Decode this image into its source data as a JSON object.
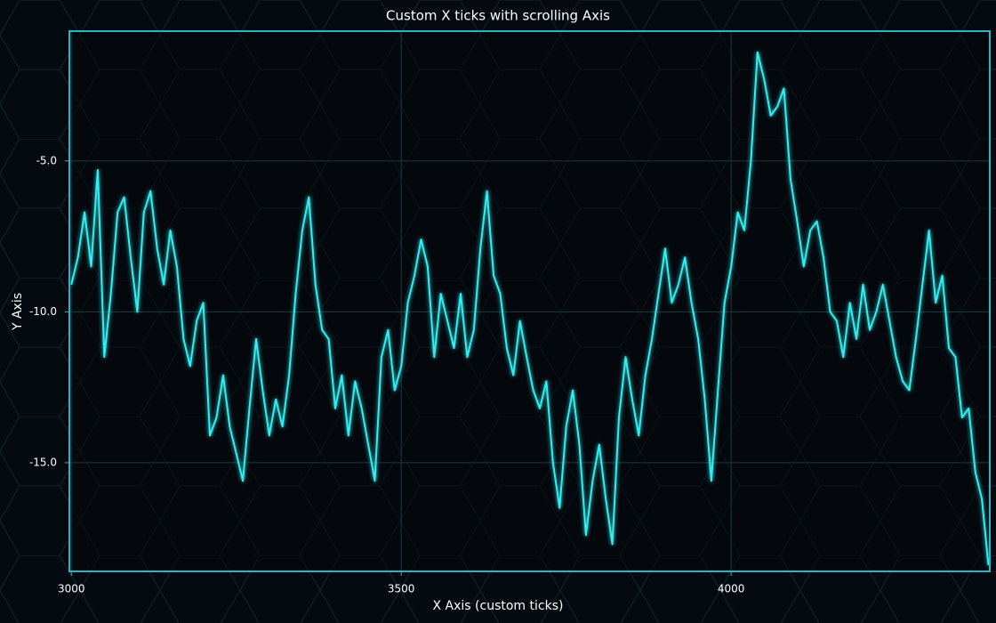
{
  "chart_data": {
    "type": "line",
    "title": "Custom X ticks with scrolling Axis",
    "x_label": "X Axis (custom ticks)",
    "y_label": "Y Axis",
    "color": "#33eef0",
    "grid": true,
    "xlim": [
      2997,
      4392
    ],
    "ylim": [
      -18.6,
      -0.7
    ],
    "xticks": [
      3000,
      3500,
      4000
    ],
    "yticks": [
      {
        "value": -5,
        "label": "-5.0"
      },
      {
        "value": -10,
        "label": "-10.0"
      },
      {
        "value": -15,
        "label": "-15.0"
      }
    ],
    "x": [
      3000,
      3010,
      3020,
      3030,
      3040,
      3050,
      3060,
      3070,
      3080,
      3090,
      3100,
      3110,
      3120,
      3130,
      3140,
      3150,
      3160,
      3170,
      3180,
      3190,
      3200,
      3210,
      3220,
      3230,
      3240,
      3250,
      3260,
      3270,
      3280,
      3290,
      3300,
      3310,
      3320,
      3330,
      3340,
      3350,
      3360,
      3370,
      3380,
      3390,
      3400,
      3410,
      3420,
      3430,
      3440,
      3450,
      3460,
      3470,
      3480,
      3490,
      3500,
      3510,
      3520,
      3530,
      3540,
      3550,
      3560,
      3570,
      3580,
      3590,
      3600,
      3610,
      3620,
      3630,
      3640,
      3650,
      3660,
      3670,
      3680,
      3690,
      3700,
      3710,
      3720,
      3730,
      3740,
      3750,
      3760,
      3770,
      3780,
      3790,
      3800,
      3810,
      3820,
      3830,
      3840,
      3850,
      3860,
      3870,
      3880,
      3890,
      3900,
      3910,
      3920,
      3930,
      3940,
      3950,
      3960,
      3970,
      3980,
      3990,
      4000,
      4010,
      4020,
      4030,
      4040,
      4050,
      4060,
      4070,
      4080,
      4090,
      4100,
      4110,
      4120,
      4130,
      4140,
      4150,
      4160,
      4170,
      4180,
      4190,
      4200,
      4210,
      4220,
      4230,
      4240,
      4250,
      4260,
      4270,
      4280,
      4290,
      4300,
      4310,
      4320,
      4330,
      4340,
      4350,
      4360,
      4370,
      4380,
      4390
    ],
    "values": [
      -9.1,
      -8.2,
      -6.7,
      -8.5,
      -5.3,
      -11.5,
      -9.4,
      -6.7,
      -6.2,
      -8.2,
      -10.0,
      -6.7,
      -6.0,
      -7.9,
      -9.1,
      -7.3,
      -8.5,
      -10.9,
      -11.8,
      -10.3,
      -9.7,
      -14.1,
      -13.5,
      -12.1,
      -13.8,
      -14.7,
      -15.6,
      -13.2,
      -10.9,
      -12.6,
      -14.1,
      -12.9,
      -13.8,
      -12.1,
      -9.4,
      -7.3,
      -6.2,
      -9.1,
      -10.6,
      -10.9,
      -13.2,
      -12.1,
      -14.1,
      -12.3,
      -13.2,
      -14.4,
      -15.6,
      -11.5,
      -10.6,
      -12.6,
      -11.8,
      -9.7,
      -8.8,
      -7.6,
      -8.5,
      -11.5,
      -9.4,
      -10.3,
      -11.2,
      -9.4,
      -11.5,
      -10.6,
      -7.9,
      -6.0,
      -8.8,
      -9.4,
      -11.2,
      -12.1,
      -10.3,
      -11.5,
      -12.6,
      -13.2,
      -12.3,
      -15.0,
      -16.5,
      -13.8,
      -12.6,
      -14.4,
      -17.4,
      -15.6,
      -14.4,
      -16.2,
      -17.7,
      -13.5,
      -11.5,
      -12.9,
      -14.1,
      -12.1,
      -10.9,
      -9.4,
      -7.9,
      -9.7,
      -9.1,
      -8.2,
      -9.7,
      -10.9,
      -12.9,
      -15.6,
      -12.6,
      -9.7,
      -8.5,
      -6.7,
      -7.3,
      -5.0,
      -1.4,
      -2.3,
      -3.5,
      -3.2,
      -2.6,
      -5.6,
      -7.0,
      -8.5,
      -7.3,
      -7.0,
      -8.2,
      -10.0,
      -10.3,
      -11.5,
      -9.7,
      -10.9,
      -9.1,
      -10.6,
      -10.0,
      -9.1,
      -10.3,
      -11.5,
      -12.3,
      -12.6,
      -10.9,
      -9.1,
      -7.3,
      -9.7,
      -8.8,
      -11.2,
      -11.5,
      -13.5,
      -13.2,
      -15.3,
      -16.2,
      -18.4
    ]
  }
}
